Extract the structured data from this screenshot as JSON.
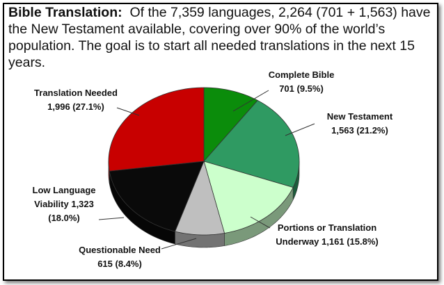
{
  "chart_data": {
    "type": "pie",
    "title": "Bible Translation:",
    "subtitle": "Of the 7,359 languages, 2,264 (701 + 1,563) have the New Testament available, covering over 90% of the world’s population. The goal is to start all needed translations in the next 15 years.",
    "categories": [
      "Complete Bible",
      "New Testament",
      "Portions or Translation Underway",
      "Questionable Need",
      "Low Language Viability",
      "Translation Needed"
    ],
    "values": [
      701,
      1563,
      1161,
      615,
      1323,
      1996
    ],
    "value_labels": [
      "701 (9.5%)",
      "1,563 (21.2%)",
      "1,161 (15.8%)",
      "615 (8.4%)",
      "1,323 (18.0%)",
      "1,996 (27.1%)"
    ],
    "colors": [
      "#0b8c0b",
      "#2f9a62",
      "#ccffcc",
      "#bfbfbf",
      "#0a0a0a",
      "#c80000"
    ]
  }
}
